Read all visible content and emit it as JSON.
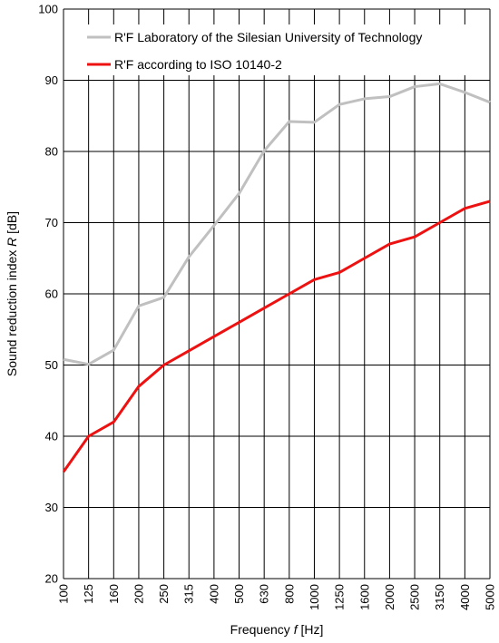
{
  "chart_data": {
    "type": "line",
    "x": [
      "100",
      "125",
      "160",
      "200",
      "250",
      "315",
      "400",
      "500",
      "630",
      "800",
      "1000",
      "1250",
      "1600",
      "2000",
      "2500",
      "3150",
      "4000",
      "5000"
    ],
    "series": [
      {
        "name": "R'F Laboratory of the Silesian University of Technology",
        "color": "#c0c0c0",
        "values": [
          50.8,
          50.1,
          52.1,
          58.3,
          59.5,
          65.2,
          69.6,
          74.1,
          80.1,
          84.2,
          84.1,
          86.6,
          87.4,
          87.7,
          89.1,
          89.5,
          88.3,
          86.9
        ]
      },
      {
        "name": "R'F according to ISO 10140-2",
        "color": "#ee1111",
        "values": [
          35,
          40,
          42,
          47,
          50,
          52,
          54,
          56,
          58,
          60,
          62,
          63,
          65,
          67,
          68,
          70,
          72,
          73
        ]
      }
    ],
    "ylim": [
      20,
      100
    ],
    "yticks": [
      "20",
      "30",
      "40",
      "50",
      "60",
      "70",
      "80",
      "90",
      "100"
    ],
    "xlabel": {
      "prefix": "Frequency ",
      "symbol": "f",
      "unit": " [Hz]"
    },
    "ylabel": {
      "prefix": "Sound reduction index ",
      "symbol": "R",
      "unit": " [dB]"
    },
    "grid": true,
    "legend": "top"
  }
}
